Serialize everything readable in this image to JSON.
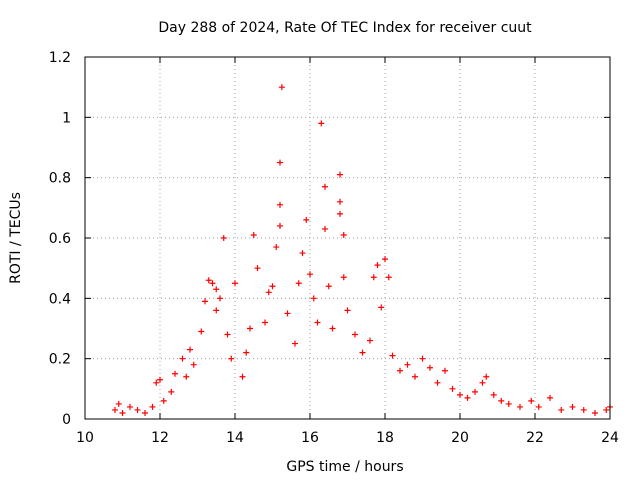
{
  "chart_data": {
    "type": "scatter",
    "title": "Day 288 of 2024, Rate Of TEC Index for receiver cuut",
    "xlabel": "GPS time / hours",
    "ylabel": "ROTI / TECUs",
    "xlim": [
      10,
      24
    ],
    "ylim": [
      0,
      1.2
    ],
    "xticks": [
      "10",
      "12",
      "14",
      "16",
      "18",
      "20",
      "22",
      "24"
    ],
    "yticks": [
      "0",
      "0.2",
      "0.4",
      "0.6",
      "0.8",
      "1",
      "1.2"
    ],
    "grid": true,
    "marker": "+",
    "color": "#ff0000",
    "series": [
      {
        "points": [
          [
            10.8,
            0.03
          ],
          [
            10.9,
            0.05
          ],
          [
            11.0,
            0.02
          ],
          [
            11.2,
            0.04
          ],
          [
            11.4,
            0.03
          ],
          [
            11.6,
            0.02
          ],
          [
            11.8,
            0.04
          ],
          [
            11.9,
            0.12
          ],
          [
            12.0,
            0.13
          ],
          [
            12.1,
            0.06
          ],
          [
            12.3,
            0.09
          ],
          [
            12.4,
            0.15
          ],
          [
            12.6,
            0.2
          ],
          [
            12.7,
            0.14
          ],
          [
            12.8,
            0.23
          ],
          [
            12.9,
            0.18
          ],
          [
            13.1,
            0.29
          ],
          [
            13.2,
            0.39
          ],
          [
            13.3,
            0.46
          ],
          [
            13.4,
            0.45
          ],
          [
            13.5,
            0.43
          ],
          [
            13.5,
            0.36
          ],
          [
            13.6,
            0.4
          ],
          [
            13.7,
            0.6
          ],
          [
            13.8,
            0.28
          ],
          [
            13.9,
            0.2
          ],
          [
            14.0,
            0.45
          ],
          [
            14.2,
            0.14
          ],
          [
            14.3,
            0.22
          ],
          [
            14.4,
            0.3
          ],
          [
            14.5,
            0.61
          ],
          [
            14.6,
            0.5
          ],
          [
            14.8,
            0.32
          ],
          [
            14.9,
            0.42
          ],
          [
            15.0,
            0.44
          ],
          [
            15.1,
            0.57
          ],
          [
            15.2,
            0.64
          ],
          [
            15.2,
            0.71
          ],
          [
            15.2,
            0.85
          ],
          [
            15.25,
            1.1
          ],
          [
            15.4,
            0.35
          ],
          [
            15.6,
            0.25
          ],
          [
            15.7,
            0.45
          ],
          [
            15.8,
            0.55
          ],
          [
            15.9,
            0.66
          ],
          [
            16.0,
            0.48
          ],
          [
            16.1,
            0.4
          ],
          [
            16.2,
            0.32
          ],
          [
            16.3,
            0.98
          ],
          [
            16.4,
            0.77
          ],
          [
            16.4,
            0.63
          ],
          [
            16.5,
            0.44
          ],
          [
            16.6,
            0.3
          ],
          [
            16.8,
            0.81
          ],
          [
            16.8,
            0.72
          ],
          [
            16.8,
            0.68
          ],
          [
            16.9,
            0.61
          ],
          [
            16.9,
            0.47
          ],
          [
            17.0,
            0.36
          ],
          [
            17.2,
            0.28
          ],
          [
            17.4,
            0.22
          ],
          [
            17.6,
            0.26
          ],
          [
            17.7,
            0.47
          ],
          [
            17.8,
            0.51
          ],
          [
            17.9,
            0.37
          ],
          [
            18.0,
            0.53
          ],
          [
            18.1,
            0.47
          ],
          [
            18.2,
            0.21
          ],
          [
            18.4,
            0.16
          ],
          [
            18.6,
            0.18
          ],
          [
            18.8,
            0.14
          ],
          [
            19.0,
            0.2
          ],
          [
            19.2,
            0.17
          ],
          [
            19.4,
            0.12
          ],
          [
            19.6,
            0.16
          ],
          [
            19.8,
            0.1
          ],
          [
            20.0,
            0.08
          ],
          [
            20.2,
            0.07
          ],
          [
            20.4,
            0.09
          ],
          [
            20.6,
            0.12
          ],
          [
            20.7,
            0.14
          ],
          [
            20.9,
            0.08
          ],
          [
            21.1,
            0.06
          ],
          [
            21.3,
            0.05
          ],
          [
            21.6,
            0.04
          ],
          [
            21.9,
            0.06
          ],
          [
            22.1,
            0.04
          ],
          [
            22.4,
            0.07
          ],
          [
            22.7,
            0.03
          ],
          [
            23.0,
            0.04
          ],
          [
            23.3,
            0.03
          ],
          [
            23.6,
            0.02
          ],
          [
            23.9,
            0.03
          ],
          [
            24.0,
            0.04
          ]
        ]
      }
    ]
  }
}
